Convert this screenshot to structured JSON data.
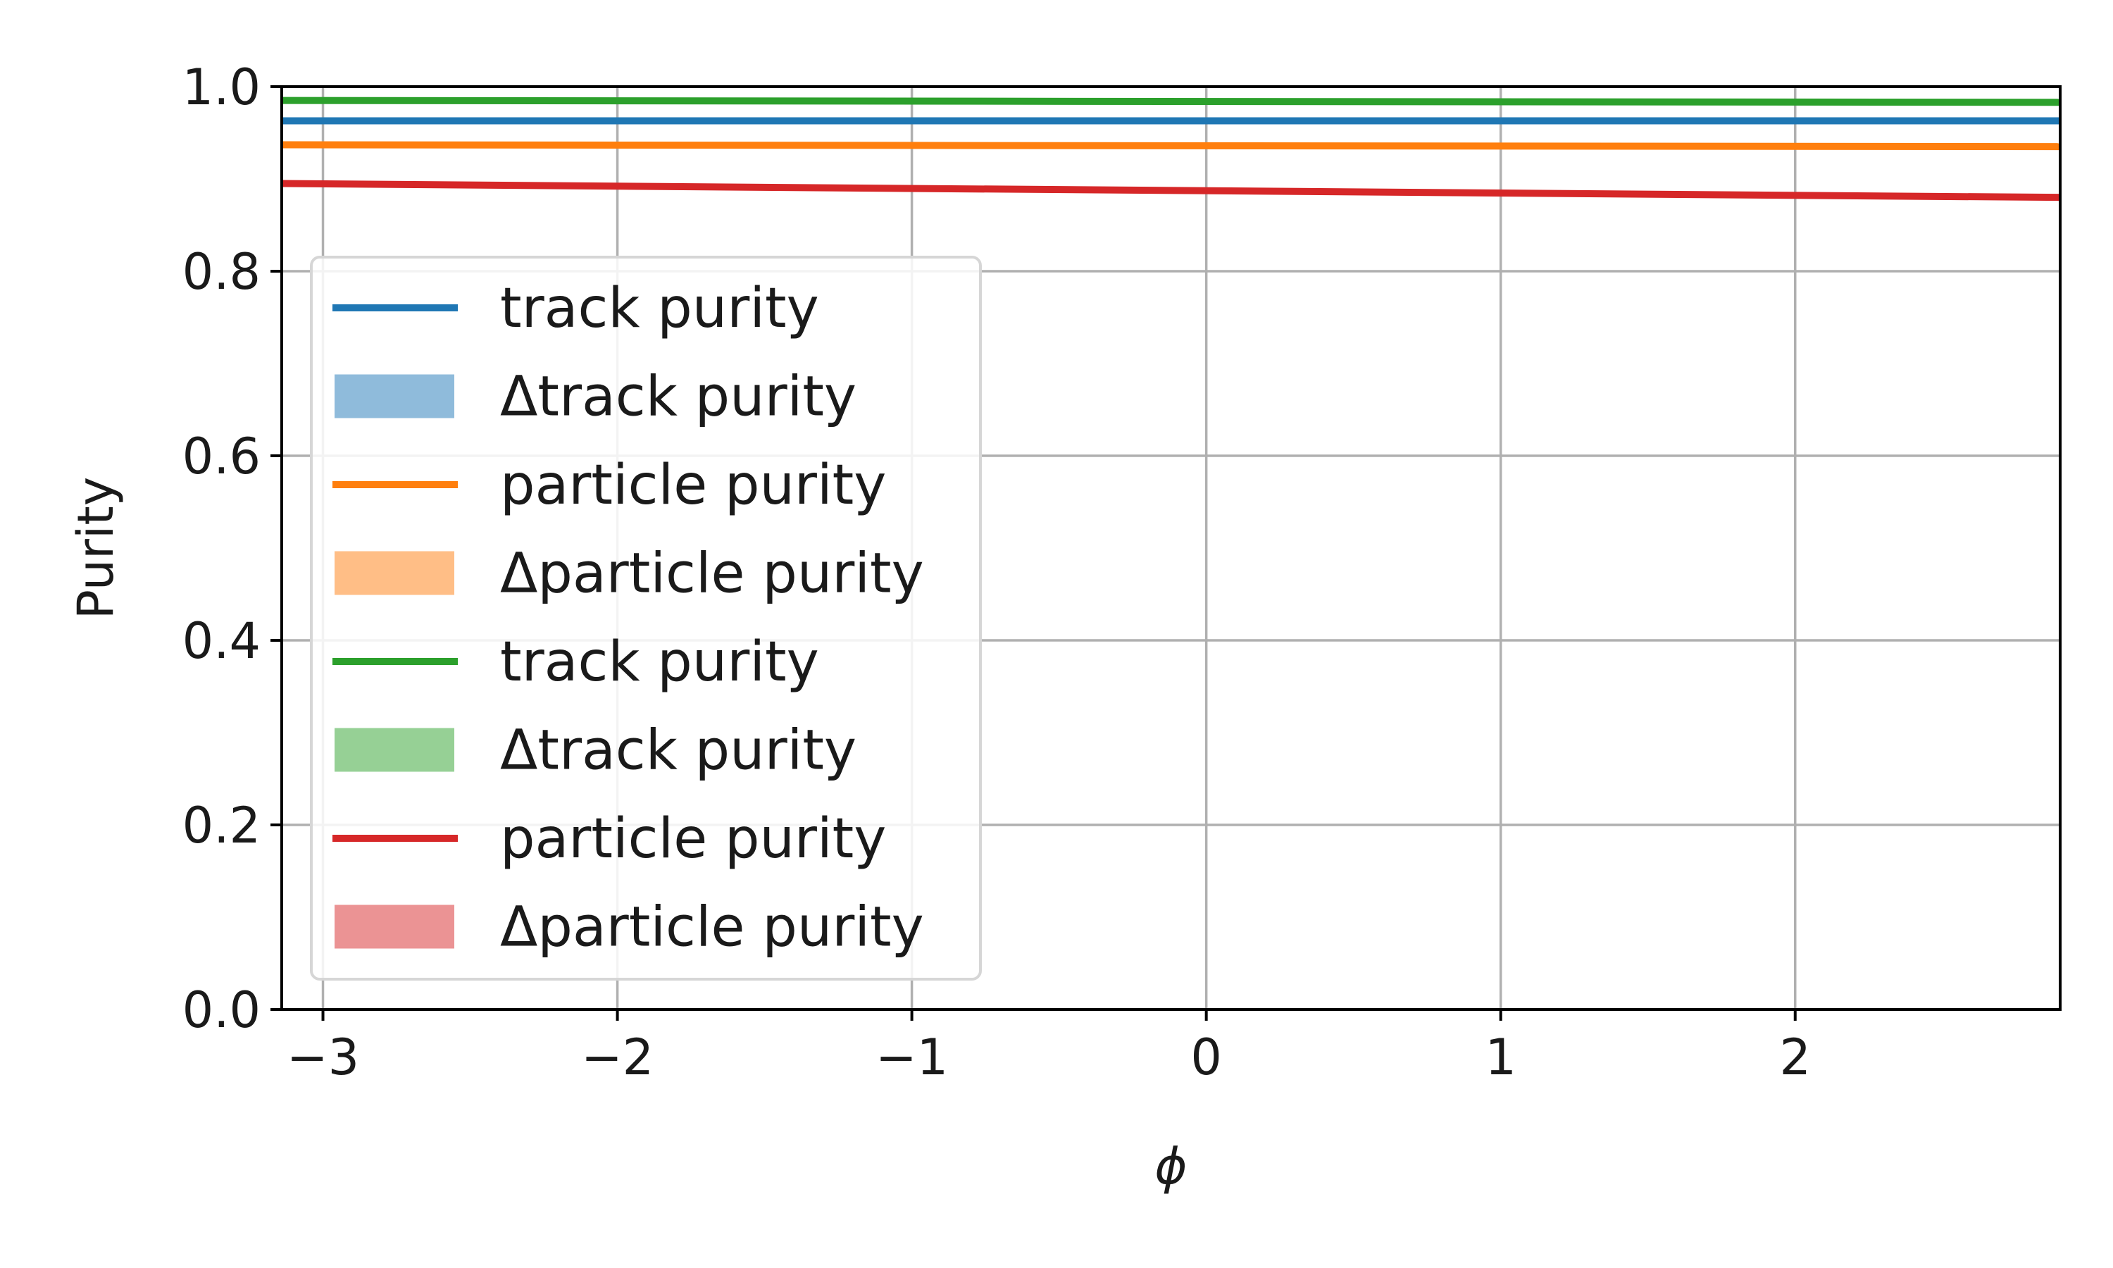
{
  "chart_data": {
    "type": "line",
    "xlabel": "ϕ",
    "ylabel": "Purity",
    "xlim": [
      -3.14,
      2.9
    ],
    "ylim": [
      0.0,
      1.0
    ],
    "xticks": [
      -3,
      -2,
      -1,
      0,
      1,
      2
    ],
    "xtick_labels": [
      "−3",
      "−2",
      "−1",
      "0",
      "1",
      "2"
    ],
    "yticks": [
      0.0,
      0.2,
      0.4,
      0.6,
      0.8,
      1.0
    ],
    "ytick_labels": [
      "0.0",
      "0.2",
      "0.4",
      "0.6",
      "0.8",
      "1.0"
    ],
    "grid": true,
    "legend_position": "center-left",
    "series": [
      {
        "name": "track purity",
        "color": "#1f77b4",
        "x": [
          -3.14,
          2.9
        ],
        "y": [
          0.963,
          0.963
        ]
      },
      {
        "name": "particle purity",
        "color": "#ff7f0e",
        "x": [
          -3.14,
          2.9
        ],
        "y": [
          0.937,
          0.935
        ]
      },
      {
        "name": "track purity",
        "color": "#2ca02c",
        "x": [
          -3.14,
          2.9
        ],
        "y": [
          0.985,
          0.983
        ]
      },
      {
        "name": "particle purity",
        "color": "#d62728",
        "x": [
          -3.14,
          2.9
        ],
        "y": [
          0.895,
          0.88
        ]
      }
    ],
    "legend": [
      {
        "label": "track purity",
        "kind": "line",
        "color": "#1f77b4"
      },
      {
        "label": "Δtrack purity",
        "kind": "patch",
        "color": "#8fbbdb"
      },
      {
        "label": "particle purity",
        "kind": "line",
        "color": "#ff7f0e"
      },
      {
        "label": "Δparticle purity",
        "kind": "patch",
        "color": "#ffbe86"
      },
      {
        "label": "track purity",
        "kind": "line",
        "color": "#2ca02c"
      },
      {
        "label": "Δtrack purity",
        "kind": "patch",
        "color": "#96d095"
      },
      {
        "label": "particle purity",
        "kind": "line",
        "color": "#d62728"
      },
      {
        "label": "Δparticle purity",
        "kind": "patch",
        "color": "#eb9394"
      }
    ]
  }
}
